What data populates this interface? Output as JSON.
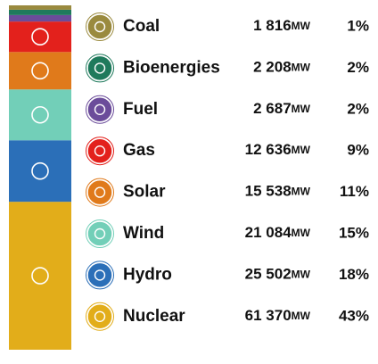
{
  "chart_data": {
    "type": "stacked_bar",
    "categories": [
      "Coal",
      "Bioenergies",
      "Fuel",
      "Gas",
      "Solar",
      "Wind",
      "Hydro",
      "Nuclear"
    ],
    "values": [
      1816,
      2208,
      2687,
      12636,
      15538,
      21084,
      25502,
      61370
    ],
    "value_labels": [
      "1 816",
      "2 208",
      "2 687",
      "12 636",
      "15 538",
      "21 084",
      "25 502",
      "61 370"
    ],
    "unit": "MW",
    "shares": [
      1,
      2,
      2,
      9,
      11,
      15,
      18,
      43
    ],
    "share_labels": [
      "1%",
      "2%",
      "2%",
      "9%",
      "11%",
      "15%",
      "18%",
      "43%"
    ],
    "colors": [
      "#9a8a3e",
      "#1f7a5c",
      "#6b4c9a",
      "#e3211c",
      "#e07a1b",
      "#72cfb8",
      "#2b6fb8",
      "#e2ad1a"
    ]
  }
}
